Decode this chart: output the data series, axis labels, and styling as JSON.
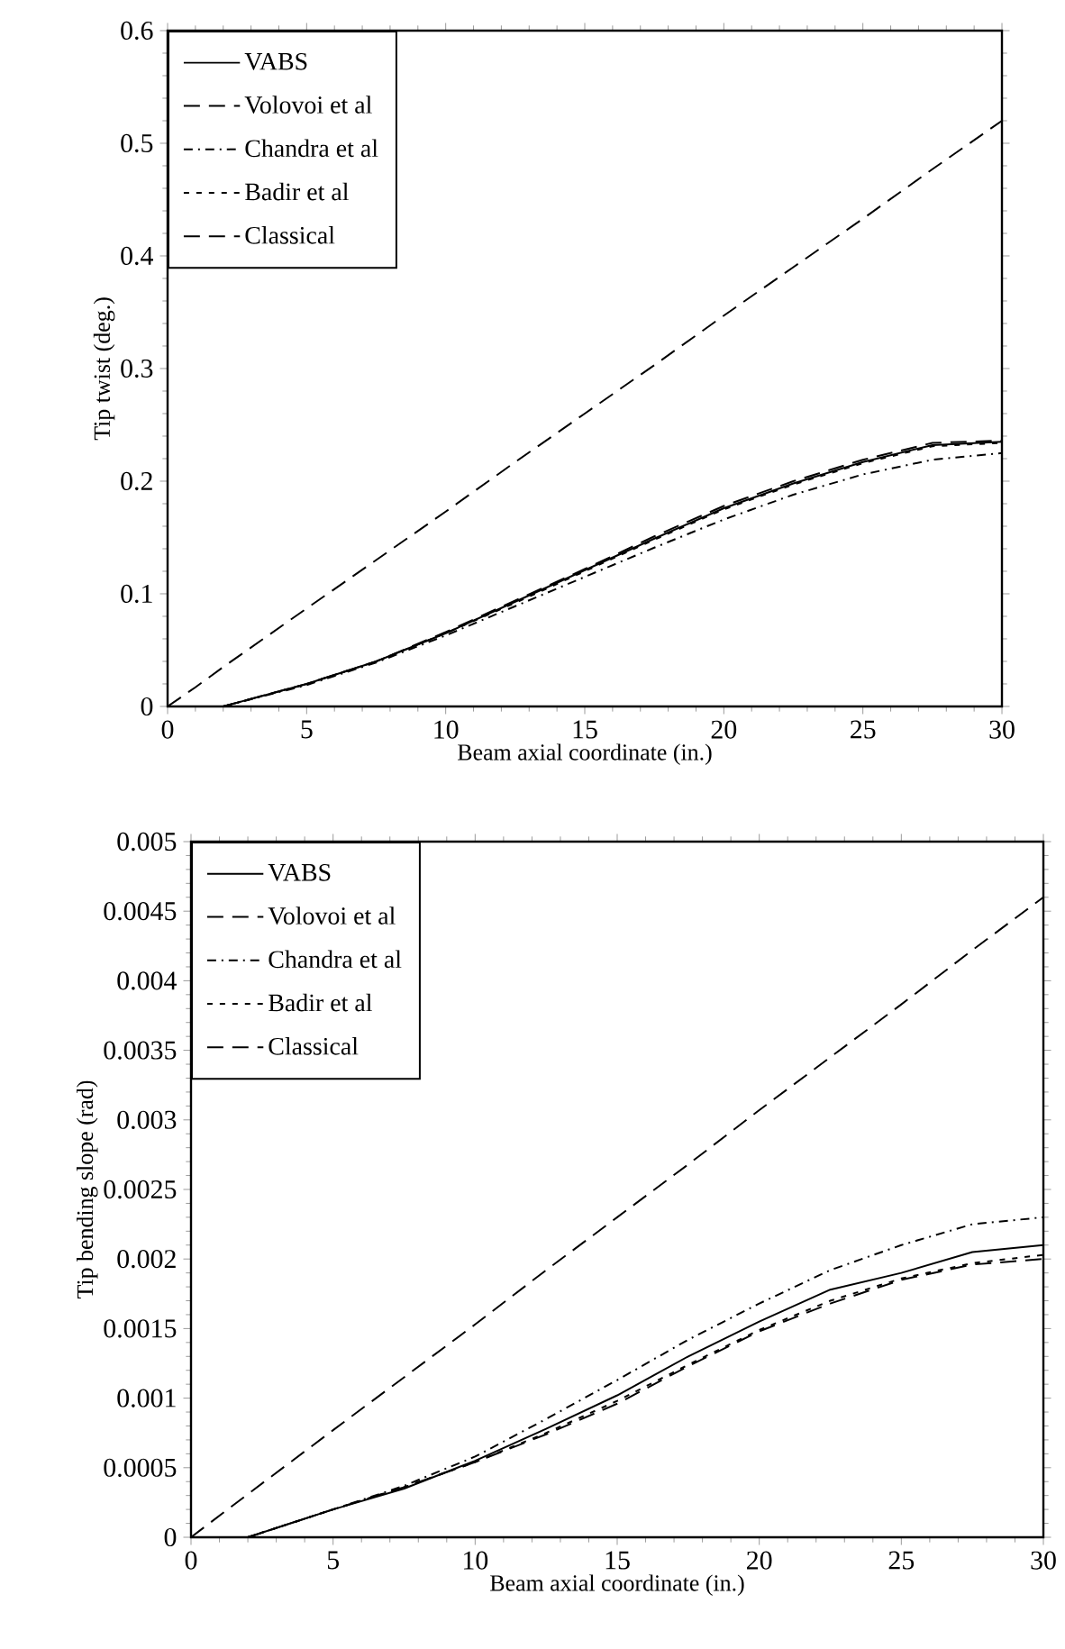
{
  "chart_data": [
    {
      "type": "line",
      "xlabel": "Beam axial coordinate (in.)",
      "ylabel": "Tip twist (deg.)",
      "xlim": [
        0,
        30
      ],
      "ylim": [
        0,
        0.6
      ],
      "xticks": [
        0,
        5,
        10,
        15,
        20,
        25,
        30
      ],
      "yticks": [
        0,
        0.1,
        0.2,
        0.3,
        0.4,
        0.5,
        0.6
      ],
      "legend": "top left",
      "grid": false,
      "x": [
        0,
        1,
        2,
        5,
        7.5,
        10,
        12.5,
        15,
        17.5,
        20,
        22.5,
        25,
        27.5,
        30
      ],
      "series": [
        {
          "name": "VABS",
          "color": "#000000",
          "line_style": "solid",
          "values": [
            0,
            0,
            0,
            0.02,
            0.04,
            0.065,
            0.093,
            0.121,
            0.149,
            0.176,
            0.198,
            0.217,
            0.232,
            0.235
          ]
        },
        {
          "name": "Volovoi et al",
          "color": "#000000",
          "line_style": "dashed",
          "values": [
            null,
            0,
            0,
            0.02,
            0.04,
            0.066,
            0.094,
            0.122,
            0.151,
            0.178,
            0.2,
            0.219,
            0.234,
            0.236
          ]
        },
        {
          "name": "Chandra et al",
          "color": "#000000",
          "line_style": "dashdot",
          "values": [
            null,
            null,
            0,
            0.019,
            0.039,
            0.063,
            0.089,
            0.115,
            0.141,
            0.166,
            0.188,
            0.206,
            0.219,
            0.225
          ]
        },
        {
          "name": "Badir et al",
          "color": "#000000",
          "line_style": "dotted",
          "values": [
            null,
            null,
            0,
            0.02,
            0.04,
            0.065,
            0.092,
            0.12,
            0.148,
            0.175,
            0.197,
            0.216,
            0.231,
            0.234
          ]
        },
        {
          "name": "Classical",
          "color": "#000000",
          "line_style": "dashed",
          "values": [
            0,
            0.017,
            0.035,
            0.087,
            0.13,
            0.173,
            0.217,
            0.26,
            0.303,
            0.347,
            0.39,
            0.433,
            0.477,
            0.52
          ]
        }
      ]
    },
    {
      "type": "line",
      "xlabel": "Beam axial coordinate (in.)",
      "ylabel": "Tip bending slope (rad)",
      "xlim": [
        0,
        30
      ],
      "ylim": [
        0,
        0.005
      ],
      "xticks": [
        0,
        5,
        10,
        15,
        20,
        25,
        30
      ],
      "yticks": [
        0,
        0.0005,
        0.001,
        0.0015,
        0.002,
        0.0025,
        0.003,
        0.0035,
        0.004,
        0.0045,
        0.005
      ],
      "legend": "top left",
      "grid": false,
      "x": [
        0,
        2,
        5,
        7.5,
        10,
        12.5,
        15,
        17.5,
        20,
        22.5,
        25,
        27.5,
        30
      ],
      "series": [
        {
          "name": "VABS",
          "color": "#000000",
          "line_style": "solid",
          "values": [
            0,
            0,
            0.0002,
            0.00035,
            0.00055,
            0.00078,
            0.00102,
            0.0013,
            0.00155,
            0.00178,
            0.0019,
            0.00205,
            0.0021
          ]
        },
        {
          "name": "Volovoi et al",
          "color": "#000000",
          "line_style": "dashed",
          "values": [
            null,
            0,
            0.0002,
            0.00036,
            0.00054,
            0.00074,
            0.00096,
            0.00123,
            0.00148,
            0.00168,
            0.00185,
            0.00196,
            0.002
          ]
        },
        {
          "name": "Chandra et al",
          "color": "#000000",
          "line_style": "dashdot",
          "values": [
            null,
            0,
            0.0002,
            0.00037,
            0.00058,
            0.00085,
            0.00113,
            0.00142,
            0.00168,
            0.00192,
            0.0021,
            0.00225,
            0.0023
          ]
        },
        {
          "name": "Badir et al",
          "color": "#000000",
          "line_style": "dotted",
          "values": [
            null,
            0,
            0.0002,
            0.00036,
            0.00054,
            0.00075,
            0.00098,
            0.00124,
            0.00149,
            0.0017,
            0.00186,
            0.00197,
            0.00203
          ]
        },
        {
          "name": "Classical",
          "color": "#000000",
          "line_style": "dashed",
          "values": [
            0,
            0.00031,
            0.00077,
            0.00115,
            0.00153,
            0.00192,
            0.0023,
            0.00268,
            0.00307,
            0.00345,
            0.00383,
            0.00422,
            0.0046
          ]
        }
      ]
    }
  ]
}
